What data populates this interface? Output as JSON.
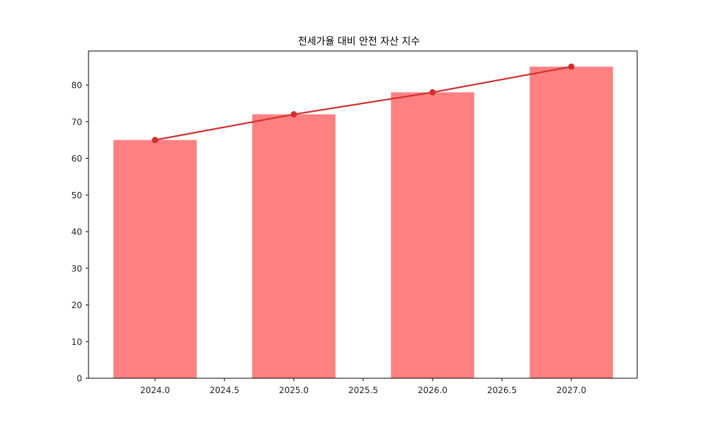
{
  "chart_data": {
    "type": "bar",
    "title": "전세가율 대비 안전 자산 지수",
    "xlabel": "",
    "ylabel": "",
    "categories": [
      2024,
      2025,
      2026,
      2027
    ],
    "series": [
      {
        "name": "bar",
        "type": "bar",
        "color": "#ff8080",
        "values": [
          65,
          72,
          78,
          85
        ]
      },
      {
        "name": "line",
        "type": "line",
        "color": "#d03030",
        "marker": "circle",
        "values": [
          65,
          72,
          78,
          85
        ]
      }
    ],
    "xlim": [
      2023.58,
      2027.45
    ],
    "ylim": [
      0,
      89.25
    ],
    "xticks": [
      "2024.0",
      "2024.5",
      "2025.0",
      "2025.5",
      "2026.0",
      "2026.5",
      "2027.0"
    ],
    "xtick_values": [
      2024.0,
      2024.5,
      2025.0,
      2025.5,
      2026.0,
      2026.5,
      2027.0
    ],
    "yticks": [
      "0",
      "10",
      "20",
      "30",
      "40",
      "50",
      "60",
      "70",
      "80"
    ],
    "ytick_values": [
      0,
      10,
      20,
      30,
      40,
      50,
      60,
      70,
      80
    ],
    "bar_width": 0.6,
    "grid": false,
    "legend": null
  }
}
